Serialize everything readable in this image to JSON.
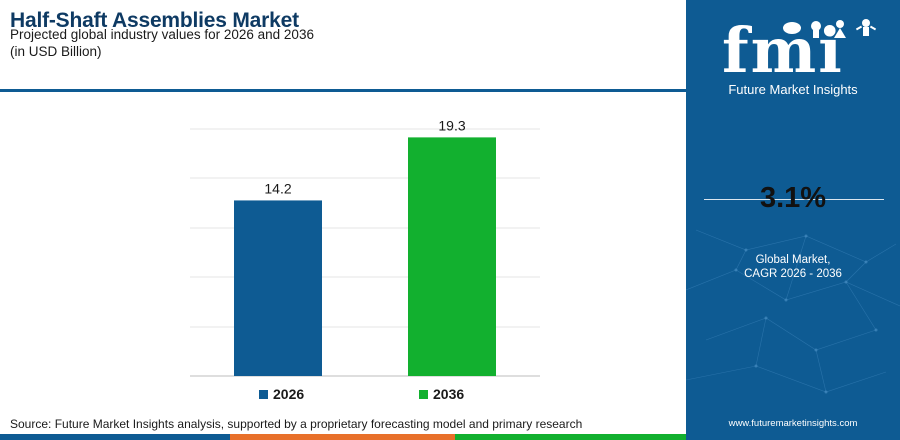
{
  "header": {
    "title": "Half-Shaft Assemblies Market",
    "subtitle": "Projected global industry values for 2026 and 2036",
    "unit": "(in USD Billion)"
  },
  "chart_data": {
    "type": "bar",
    "categories": [
      "2026",
      "2036"
    ],
    "values": [
      14.2,
      19.3
    ],
    "data_labels": [
      "14.2",
      "19.3"
    ],
    "ylim": [
      0,
      22
    ],
    "grid": true,
    "legend_position": "bottom",
    "colors": [
      "#0e5b93",
      "#12b02f"
    ]
  },
  "legend": {
    "items": [
      {
        "label": "2026",
        "color": "#0e5b93"
      },
      {
        "label": "2036",
        "color": "#12b02f"
      }
    ]
  },
  "source": "Source: Future Market Insights analysis, supported by a proprietary forecasting model and primary research",
  "footer_colors": [
    "#0e5b93",
    "#e8702a",
    "#12b02f",
    "#7b2d8e"
  ],
  "sidebar": {
    "logo_text": "fmi",
    "logo_subtitle": "Future Market Insights",
    "cagr_value": "3.1%",
    "cagr_label_line1": "Global Market,",
    "cagr_label_line2": "CAGR 2026 - 2036",
    "website": "www.futuremarketinsights.com",
    "background": "#0e5b93"
  }
}
